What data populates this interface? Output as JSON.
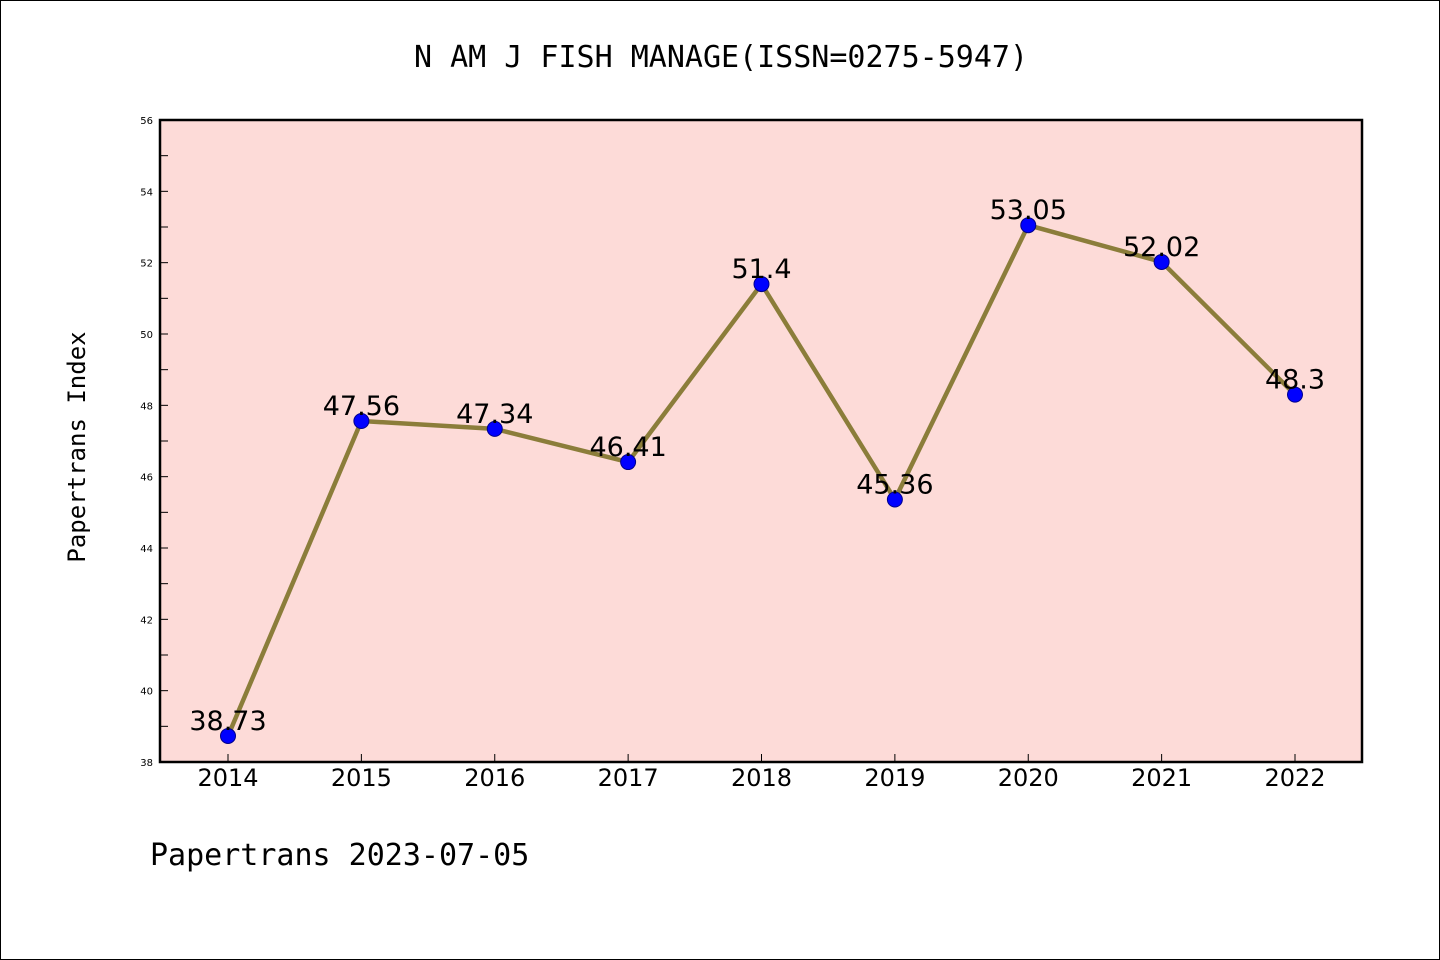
{
  "chart_data": {
    "type": "line",
    "title": "N AM J FISH MANAGE(ISSN=0275-5947)",
    "xlabel": "",
    "ylabel": "Papertrans Index",
    "categories": [
      "2014",
      "2015",
      "2016",
      "2017",
      "2018",
      "2019",
      "2020",
      "2021",
      "2022"
    ],
    "values": [
      38.73,
      47.56,
      47.34,
      46.41,
      51.4,
      45.36,
      53.05,
      52.02,
      48.3
    ],
    "data_labels": [
      "38.73",
      "47.56",
      "47.34",
      "46.41",
      "51.4",
      "45.36",
      "53.05",
      "52.02",
      "48.3"
    ],
    "ylim": [
      38,
      56
    ],
    "yticks": [
      38,
      40,
      42,
      44,
      46,
      48,
      50,
      52,
      54,
      56
    ],
    "grid": false,
    "legend": "none",
    "colors": {
      "plot_background": "#fddbd8",
      "line": "#8b7d3a",
      "marker": "#0000ff",
      "marker_edge": "#00008b",
      "axes": "#000000"
    }
  },
  "footer": {
    "text": "Papertrans 2023-07-05"
  }
}
